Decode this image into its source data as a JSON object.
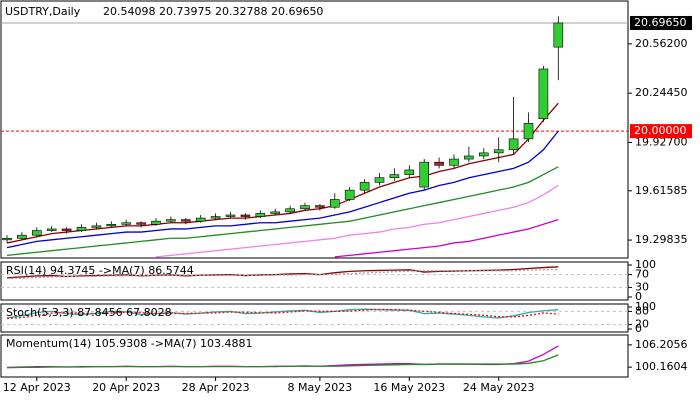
{
  "chart_data": [
    {
      "type": "candlestick",
      "title": "USDTRY,Daily",
      "ohlc_label": "20.54098 20.73975 20.32788 20.69650",
      "categories": [
        null,
        null,
        "12 Apr 2023",
        null,
        null,
        null,
        null,
        null,
        "20 Apr 2023",
        null,
        null,
        null,
        null,
        null,
        "28 Apr 2023",
        null,
        null,
        null,
        null,
        null,
        null,
        "8 May 2023",
        null,
        null,
        null,
        null,
        null,
        "16 May 2023",
        null,
        null,
        null,
        null,
        null,
        "24 May 2023",
        null,
        null,
        null,
        null
      ],
      "open": [
        19.3,
        19.31,
        19.33,
        19.36,
        19.37,
        19.36,
        19.38,
        19.39,
        19.4,
        19.41,
        19.4,
        19.42,
        19.43,
        19.42,
        19.44,
        19.45,
        19.46,
        19.45,
        19.47,
        19.48,
        19.5,
        19.52,
        19.51,
        19.56,
        19.62,
        19.67,
        19.7,
        19.72,
        19.64,
        19.8,
        19.78,
        19.82,
        19.84,
        19.86,
        19.88,
        19.95,
        20.08,
        20.54098
      ],
      "high": [
        19.33,
        19.35,
        19.38,
        19.39,
        19.38,
        19.4,
        19.41,
        19.42,
        19.43,
        19.42,
        19.44,
        19.45,
        19.44,
        19.46,
        19.47,
        19.48,
        19.47,
        19.49,
        19.5,
        19.52,
        19.54,
        19.53,
        19.6,
        19.64,
        19.69,
        19.73,
        19.76,
        19.78,
        19.82,
        19.83,
        19.85,
        19.9,
        19.89,
        19.96,
        20.22,
        20.12,
        20.42,
        20.73975
      ],
      "low": [
        19.28,
        19.3,
        19.32,
        19.35,
        19.34,
        19.35,
        19.37,
        19.38,
        19.39,
        19.38,
        19.39,
        19.41,
        19.4,
        19.41,
        19.43,
        19.44,
        19.43,
        19.44,
        19.46,
        19.47,
        19.49,
        19.49,
        19.5,
        19.55,
        19.6,
        19.65,
        19.68,
        19.7,
        19.62,
        19.76,
        19.76,
        19.8,
        19.82,
        19.8,
        19.85,
        19.93,
        20.06,
        20.32788
      ],
      "close": [
        19.31,
        19.33,
        19.36,
        19.37,
        19.36,
        19.38,
        19.39,
        19.4,
        19.41,
        19.4,
        19.42,
        19.43,
        19.42,
        19.44,
        19.45,
        19.46,
        19.45,
        19.47,
        19.48,
        19.5,
        19.52,
        19.51,
        19.56,
        19.62,
        19.67,
        19.7,
        19.72,
        19.75,
        19.8,
        19.78,
        19.82,
        19.84,
        19.86,
        19.88,
        19.95,
        20.05,
        20.4,
        20.6965
      ],
      "up_color": "#32cd32",
      "down_color": "#b22222",
      "lines": [
        {
          "color": "#8b0000",
          "values": [
            19.28,
            19.3,
            19.32,
            19.34,
            19.35,
            19.36,
            19.37,
            19.38,
            19.39,
            19.39,
            19.4,
            19.41,
            19.41,
            19.42,
            19.43,
            19.44,
            19.44,
            19.45,
            19.46,
            19.47,
            19.49,
            19.5,
            19.52,
            19.56,
            19.6,
            19.64,
            19.67,
            19.7,
            19.71,
            19.74,
            19.76,
            19.79,
            19.81,
            19.83,
            19.85,
            19.95,
            20.07,
            20.18
          ]
        },
        {
          "color": "#0000cd",
          "values": [
            19.25,
            19.27,
            19.29,
            19.3,
            19.31,
            19.32,
            19.33,
            19.34,
            19.35,
            19.35,
            19.36,
            19.37,
            19.37,
            19.38,
            19.39,
            19.39,
            19.4,
            19.41,
            19.41,
            19.42,
            19.43,
            19.44,
            19.46,
            19.48,
            19.51,
            19.54,
            19.57,
            19.6,
            19.62,
            19.65,
            19.67,
            19.7,
            19.72,
            19.74,
            19.76,
            19.8,
            19.88,
            20.0
          ]
        },
        {
          "color": "#228b22",
          "values": [
            19.2,
            19.21,
            19.22,
            19.23,
            19.24,
            19.25,
            19.26,
            19.27,
            19.28,
            19.29,
            19.3,
            19.31,
            19.31,
            19.32,
            19.33,
            19.34,
            19.35,
            19.36,
            19.37,
            19.38,
            19.39,
            19.4,
            19.41,
            19.42,
            19.44,
            19.46,
            19.48,
            19.5,
            19.52,
            19.54,
            19.56,
            19.58,
            19.6,
            19.62,
            19.64,
            19.67,
            19.72,
            19.77
          ]
        },
        {
          "color": "#ee82ee",
          "values": [
            null,
            null,
            null,
            null,
            null,
            null,
            null,
            null,
            null,
            null,
            19.19,
            19.2,
            19.21,
            19.22,
            19.23,
            19.24,
            19.25,
            19.26,
            19.27,
            19.28,
            19.29,
            19.3,
            19.31,
            19.33,
            19.34,
            19.35,
            19.37,
            19.38,
            19.4,
            19.41,
            19.43,
            19.45,
            19.47,
            19.49,
            19.51,
            19.54,
            19.59,
            19.65
          ]
        },
        {
          "color": "#cc00cc",
          "values": [
            null,
            null,
            null,
            null,
            null,
            null,
            null,
            null,
            null,
            null,
            null,
            null,
            null,
            null,
            null,
            null,
            null,
            null,
            null,
            null,
            null,
            null,
            19.19,
            19.2,
            19.21,
            19.22,
            19.23,
            19.24,
            19.25,
            19.26,
            19.28,
            19.29,
            19.31,
            19.33,
            19.35,
            19.37,
            19.4,
            19.43
          ]
        }
      ],
      "ylim": [
        19.183,
        20.838
      ],
      "yticks": [
        {
          "value": 19.29835,
          "label": "19.29835"
        },
        {
          "value": 19.61585,
          "label": "19.61585"
        },
        {
          "value": 19.927,
          "label": "19.92700"
        },
        {
          "value": 20.2445,
          "label": "20.24450"
        },
        {
          "value": 20.562,
          "label": "20.56200"
        }
      ],
      "price_line": {
        "value": 20.6965,
        "label": "20.69650"
      },
      "level_line": {
        "value": 20,
        "label": "20.00000",
        "color": "#ff0000"
      }
    },
    {
      "type": "line",
      "title": "RSI(14) 94.3745 ->MA(7) 86.5744",
      "grid": true,
      "series": [
        {
          "color": "#8b0000",
          "values": [
            60,
            63,
            66,
            67,
            64,
            66,
            67,
            68,
            69,
            66,
            68,
            69,
            66,
            68,
            69,
            70,
            67,
            69,
            70,
            72,
            73,
            70,
            76,
            80,
            82,
            83,
            84,
            85,
            78,
            80,
            81,
            82,
            83,
            84,
            86,
            89,
            92,
            94.3745
          ]
        },
        {
          "color": "#a0a0a0",
          "values": [
            58,
            59,
            61,
            63,
            64,
            64,
            65,
            66,
            67,
            67,
            67,
            68,
            68,
            68,
            68,
            68,
            68,
            68,
            69,
            69,
            70,
            70,
            71,
            73,
            75,
            77,
            79,
            81,
            82,
            82,
            82,
            82,
            82,
            82,
            82,
            84,
            85,
            86.5744
          ]
        }
      ],
      "ylim": [
        0,
        100
      ],
      "yticks": [
        0,
        30,
        70,
        100
      ]
    },
    {
      "type": "line",
      "title": "Stoch(5,3,3) 87.8456 67.8028",
      "grid": true,
      "series": [
        {
          "color": "#20b2aa",
          "values": [
            50,
            60,
            75,
            80,
            70,
            65,
            72,
            80,
            78,
            65,
            70,
            75,
            68,
            72,
            78,
            80,
            70,
            72,
            78,
            82,
            85,
            75,
            80,
            88,
            90,
            88,
            86,
            85,
            70,
            72,
            68,
            62,
            55,
            50,
            60,
            75,
            83,
            87.8456
          ]
        },
        {
          "color": "#ff0000",
          "values": [
            48,
            52,
            62,
            72,
            75,
            72,
            69,
            72,
            77,
            74,
            71,
            70,
            71,
            72,
            73,
            77,
            76,
            74,
            73,
            77,
            82,
            81,
            80,
            81,
            86,
            89,
            88,
            86,
            80,
            76,
            70,
            67,
            62,
            56,
            55,
            62,
            73,
            67.8028
          ]
        }
      ],
      "ylim": [
        0,
        100
      ],
      "yticks": [
        0,
        20,
        80,
        100
      ]
    },
    {
      "type": "line",
      "title": "Momentum(14) 105.9308 ->MA(7) 103.4881",
      "grid": false,
      "series": [
        {
          "color": "#cc00cc",
          "values": [
            100.1,
            100.2,
            100.3,
            100.3,
            100.2,
            100.3,
            100.3,
            100.3,
            100.4,
            100.3,
            100.3,
            100.4,
            100.3,
            100.3,
            100.4,
            100.4,
            100.3,
            100.3,
            100.4,
            100.4,
            100.5,
            100.4,
            100.6,
            100.8,
            100.9,
            101.0,
            101.1,
            101.1,
            100.9,
            101.0,
            101.0,
            101.0,
            100.9,
            100.9,
            101.1,
            101.8,
            103.6,
            105.9308
          ]
        },
        {
          "color": "#228b22",
          "values": [
            100.0,
            100.1,
            100.1,
            100.2,
            100.2,
            100.2,
            100.3,
            100.3,
            100.3,
            100.3,
            100.3,
            100.3,
            100.3,
            100.3,
            100.3,
            100.3,
            100.3,
            100.3,
            100.3,
            100.4,
            100.4,
            100.4,
            100.4,
            100.5,
            100.6,
            100.7,
            100.8,
            100.9,
            100.9,
            101.0,
            101.0,
            101.0,
            101.0,
            101.0,
            101.0,
            101.2,
            101.9,
            103.4881
          ]
        }
      ],
      "ylim": [
        98.3,
        108.07
      ],
      "yticks": [
        100.1604,
        106.2056
      ]
    }
  ]
}
